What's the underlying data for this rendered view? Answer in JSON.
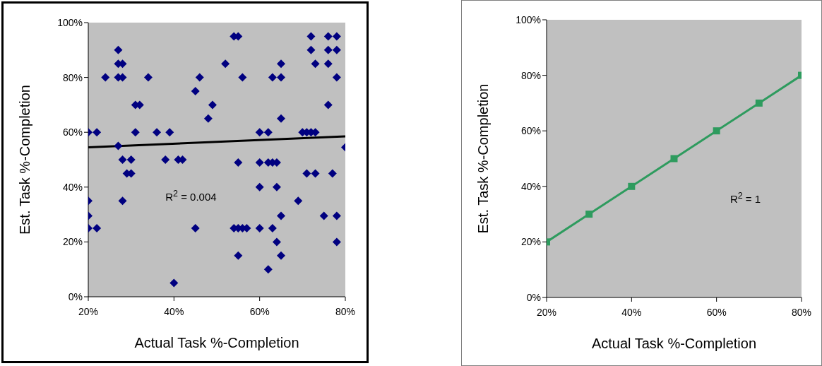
{
  "chart_data": [
    {
      "type": "scatter",
      "xlabel": "Actual Task %-Completion",
      "ylabel": "Est. Task %-Completion",
      "marker": "diamond",
      "annotations": [
        "R$^{2}$ = 0.004"
      ],
      "xlim": [
        20,
        80
      ],
      "xticks": [
        {
          "value": 20,
          "label": "20%"
        },
        {
          "value": 40,
          "label": "40%"
        },
        {
          "value": 60,
          "label": "60%"
        },
        {
          "value": 80,
          "label": "80%"
        }
      ],
      "ylim": [
        0,
        100
      ],
      "yticks": [
        {
          "value": 0,
          "label": "0%"
        },
        {
          "value": 20,
          "label": "20%"
        },
        {
          "value": 40,
          "label": "40%"
        },
        {
          "value": 60,
          "label": "60%"
        },
        {
          "value": 80,
          "label": "80%"
        },
        {
          "value": 100,
          "label": "100%"
        }
      ],
      "series": [
        {
          "color": "#000080",
          "x": [
            20,
            20,
            20,
            20,
            22,
            22,
            24,
            27,
            27,
            28,
            27,
            28,
            27,
            28,
            28,
            29,
            30,
            30,
            31,
            31,
            32,
            34,
            36,
            38,
            39,
            40,
            41,
            42,
            45,
            45,
            46,
            48,
            49,
            52,
            54,
            55,
            56,
            63,
            65,
            65,
            72,
            72,
            73,
            76,
            78,
            76,
            78,
            76,
            78,
            76,
            65,
            60,
            62,
            70,
            71,
            72,
            73,
            80,
            55,
            60,
            62,
            63,
            64,
            71,
            73,
            77,
            60,
            64,
            69,
            65,
            75,
            78,
            54,
            55,
            56,
            57,
            60,
            63,
            64,
            78,
            55,
            65,
            62
          ],
          "values": [
            25,
            29.5,
            35,
            60,
            25,
            60,
            80,
            90,
            85,
            85,
            80,
            80,
            55,
            50,
            35,
            45,
            50,
            45,
            60,
            70,
            70,
            80,
            60,
            50,
            60,
            5,
            50,
            50,
            75,
            25,
            80,
            65,
            70,
            85,
            95,
            95,
            80,
            80,
            80,
            85,
            95,
            90,
            85,
            95,
            95,
            90,
            90,
            85,
            80,
            70,
            65,
            60,
            60,
            60,
            60,
            60,
            60,
            54.5,
            49,
            49,
            49,
            49,
            49,
            45,
            45,
            45,
            40,
            40,
            35,
            29.5,
            29.5,
            29.5,
            25,
            25,
            25,
            25,
            25,
            25,
            20,
            20,
            15,
            15,
            10
          ]
        },
        {
          "type": "line",
          "color": "#000000",
          "marker": "none",
          "x": [
            20,
            80
          ],
          "values": [
            54.5,
            58.5
          ]
        }
      ]
    },
    {
      "type": "line",
      "xlabel": "Actual Task %-Completion",
      "ylabel": "Est. Task %-Completion",
      "marker": "square",
      "annotations": [
        "R$^{2}$ = 1"
      ],
      "xlim": [
        20,
        80
      ],
      "xticks": [
        {
          "value": 20,
          "label": "20%"
        },
        {
          "value": 40,
          "label": "40%"
        },
        {
          "value": 60,
          "label": "60%"
        },
        {
          "value": 80,
          "label": "80%"
        }
      ],
      "ylim": [
        0,
        100
      ],
      "yticks": [
        {
          "value": 0,
          "label": "0%"
        },
        {
          "value": 20,
          "label": "20%"
        },
        {
          "value": 40,
          "label": "40%"
        },
        {
          "value": 60,
          "label": "60%"
        },
        {
          "value": 80,
          "label": "80%"
        },
        {
          "value": 100,
          "label": "100%"
        }
      ],
      "series": [
        {
          "color": "#2e9b5e",
          "x": [
            20,
            30,
            40,
            50,
            60,
            70,
            80
          ],
          "values": [
            20,
            30,
            40,
            50,
            60,
            70,
            80
          ]
        }
      ]
    }
  ]
}
